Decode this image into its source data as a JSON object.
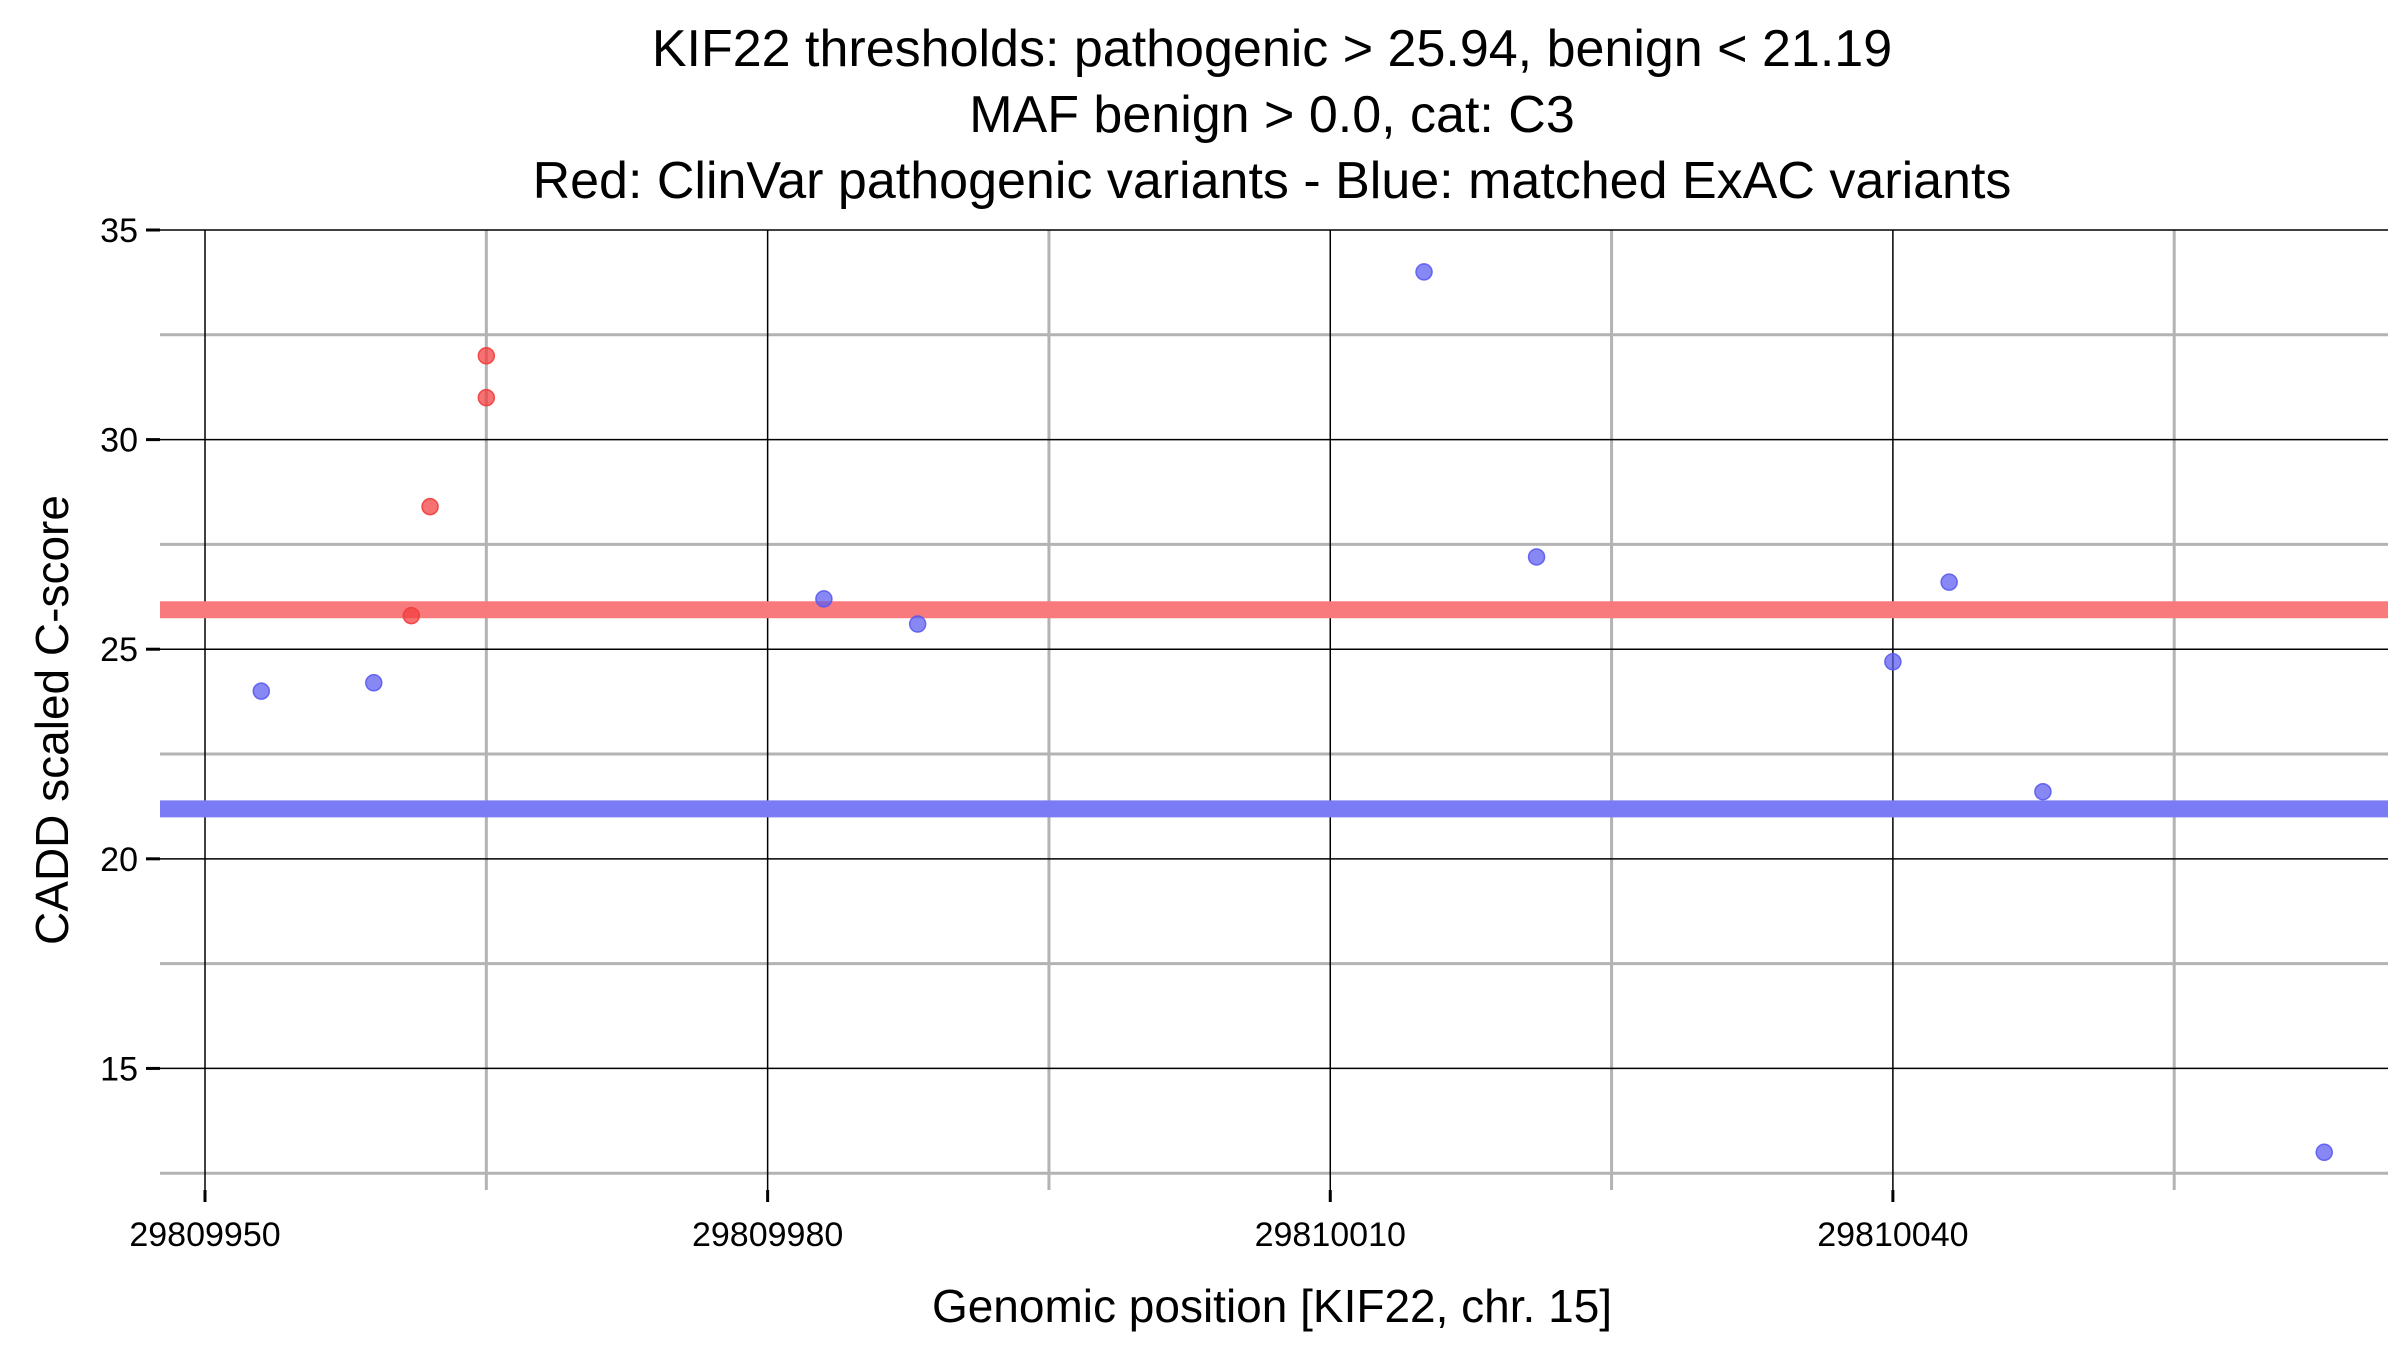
{
  "chart_data": {
    "type": "scatter",
    "title_lines": [
      "KIF22 thresholds: pathogenic > 25.94, benign < 21.19",
      "MAF benign > 0.0, cat: C3",
      "Red: ClinVar pathogenic variants - Blue: matched ExAC variants"
    ],
    "xlabel": "Genomic position [KIF22, chr. 15]",
    "ylabel": "CADD scaled C-score",
    "xlim": [
      29809947.6,
      29810066.4
    ],
    "ylim": [
      12.1,
      35.0
    ],
    "x_ticks": [
      29809950,
      29809980,
      29810010,
      29810040
    ],
    "x_tick_labels": [
      "29809950",
      "29809980",
      "29810010",
      "29810040"
    ],
    "x_minor_grid": [
      29809965,
      29809995,
      29810025,
      29810055
    ],
    "y_ticks": [
      15,
      20,
      25,
      30,
      35
    ],
    "y_tick_labels": [
      "15",
      "20",
      "25",
      "30",
      "35"
    ],
    "y_minor_grid": [
      12.5,
      17.5,
      22.5,
      27.5,
      32.5
    ],
    "grid": true,
    "thresholds": [
      {
        "value": 25.94,
        "color": "#f87a7c"
      },
      {
        "value": 21.19,
        "color": "#7b7bf5"
      }
    ],
    "series": [
      {
        "color": "#f23c3c",
        "points": [
          {
            "x": 29809961,
            "y": 25.8
          },
          {
            "x": 29809962,
            "y": 28.4
          },
          {
            "x": 29809965,
            "y": 31.0
          },
          {
            "x": 29809965,
            "y": 32.0
          }
        ]
      },
      {
        "color": "#5a5af0",
        "points": [
          {
            "x": 29809953,
            "y": 24.0
          },
          {
            "x": 29809959,
            "y": 24.2
          },
          {
            "x": 29809983,
            "y": 26.2
          },
          {
            "x": 29809988,
            "y": 25.6
          },
          {
            "x": 29810015,
            "y": 34.0
          },
          {
            "x": 29810021,
            "y": 27.2
          },
          {
            "x": 29810040,
            "y": 24.7
          },
          {
            "x": 29810043,
            "y": 26.6
          },
          {
            "x": 29810048,
            "y": 21.6
          },
          {
            "x": 29810063,
            "y": 13.0
          }
        ]
      }
    ]
  }
}
